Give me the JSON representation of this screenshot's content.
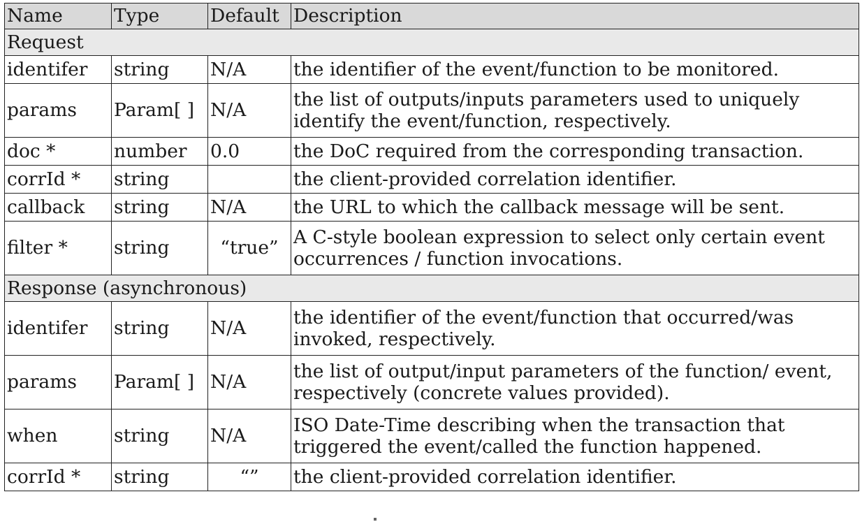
{
  "table": {
    "headers": [
      "Name",
      "Type",
      "Default",
      "Description"
    ],
    "sections": [
      {
        "title": "Request",
        "rows": [
          {
            "name": "identifer",
            "type": "string",
            "default": "N/A",
            "description": "the identifier of the event/function to be monitored.",
            "lines": 1
          },
          {
            "name": "params",
            "type": "Param[ ]",
            "default": "N/A",
            "description": "the list of outputs/inputs parameters used to uniquely identify the event/function, respectively.",
            "lines": 2
          },
          {
            "name": "doc *",
            "type": "number",
            "default": "0.0",
            "description": "the DoC required from the corresponding transaction.",
            "lines": 1
          },
          {
            "name": "corrId *",
            "type": "string",
            "default": "",
            "description": "the client-provided correlation identifier.",
            "lines": 1
          },
          {
            "name": "callback",
            "type": "string",
            "default": "N/A",
            "description": "the URL to which the callback message will be sent.",
            "lines": 1
          },
          {
            "name": "filter *",
            "type": "string",
            "default": "“true”",
            "description": "A C-style boolean expression to select only certain event occurrences / function invocations.",
            "lines": 2,
            "center_default": true
          }
        ]
      },
      {
        "title": "Response (asynchronous)",
        "rows": [
          {
            "name": "identifer",
            "type": "string",
            "default": "N/A",
            "description": "the identifier of the event/function that occurred/was invoked, respectively.",
            "lines": 2
          },
          {
            "name": "params",
            "type": "Param[ ]",
            "default": "N/A",
            "description": "the list of output/input parameters of the function/ event, respectively (concrete values provided).",
            "lines": 2
          },
          {
            "name": "when",
            "type": "string",
            "default": "N/A",
            "description": "ISO Date-Time describing when the transaction that triggered the event/called the function happened.",
            "lines": 2
          },
          {
            "name": "corrId *",
            "type": "string",
            "default": "“”",
            "description": "the client-provided correlation identifier.",
            "lines": 1,
            "center_default": true
          }
        ]
      }
    ]
  }
}
